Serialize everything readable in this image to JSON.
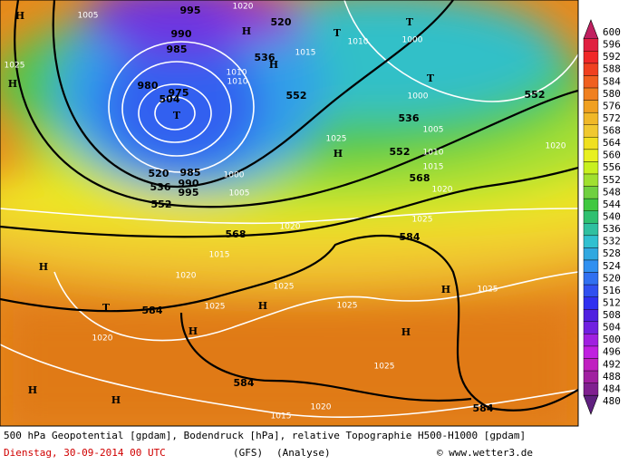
{
  "map": {
    "labels": [
      "H",
      "1005",
      "995",
      "1020",
      "520",
      "H",
      "T",
      "1010",
      "T",
      "1000",
      "990",
      "985",
      "536",
      "H",
      "1015",
      "1025",
      "H",
      "T",
      "552",
      "1010",
      "1010",
      "980",
      "504",
      "975",
      "1000",
      "552",
      "T",
      "536",
      "1005",
      "1025",
      "H",
      "552",
      "1010",
      "1020",
      "1015",
      "520",
      "985",
      "536",
      "990",
      "995",
      "1000",
      "568",
      "1020",
      "1005",
      "552",
      "1025",
      "1020",
      "568",
      "584",
      "1015",
      "H",
      "1020",
      "1025",
      "H",
      "1025",
      "T",
      "584",
      "1025",
      "H",
      "1025",
      "H",
      "H",
      "1020",
      "1025",
      "584",
      "H",
      "H",
      "1020",
      "584",
      "1015"
    ]
  },
  "legend": {
    "levels": [
      "600",
      "596",
      "592",
      "588",
      "584",
      "580",
      "576",
      "572",
      "568",
      "564",
      "560",
      "556",
      "552",
      "548",
      "544",
      "540",
      "536",
      "532",
      "528",
      "524",
      "520",
      "516",
      "512",
      "508",
      "504",
      "500",
      "496",
      "492",
      "488",
      "484",
      "480"
    ]
  },
  "footer": {
    "description": "500 hPa Geopotential [gpdam], Bodendruck [hPa], relative Topographie H500-H1000 [gpdam]",
    "date": "Dienstag, 30-09-2014  00 UTC",
    "model": "(GFS)",
    "run": "(Analyse)",
    "copyright": "© www.wetter3.de"
  }
}
